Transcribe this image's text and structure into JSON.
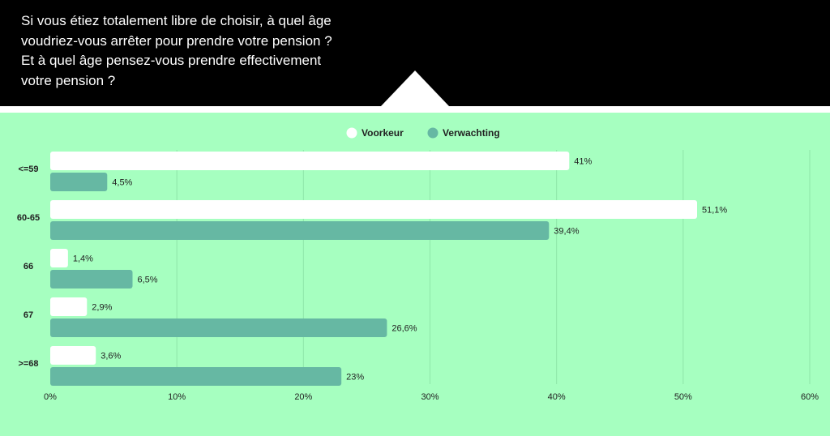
{
  "header": {
    "question_lines": [
      "Si vous étiez totalement libre de choisir, à quel âge",
      "voudriez-vous arrêter pour prendre votre pension ?",
      "Et à quel âge pensez-vous prendre effectivement",
      "votre pension ?"
    ]
  },
  "colors": {
    "header_bg": "#000000",
    "chart_bg": "#a6ffc0",
    "voorkeur": "#ffffff",
    "verwachting": "#66b8a3"
  },
  "chart_data": {
    "type": "bar",
    "orientation": "horizontal",
    "categories": [
      "<=59",
      "60-65",
      "66",
      "67",
      ">=68"
    ],
    "series": [
      {
        "name": "Voorkeur",
        "color": "#ffffff",
        "values": [
          41,
          51.1,
          1.4,
          2.9,
          3.6
        ],
        "labels": [
          "41%",
          "51,1%",
          "1,4%",
          "2,9%",
          "3,6%"
        ]
      },
      {
        "name": "Verwachting",
        "color": "#66b8a3",
        "values": [
          4.5,
          39.4,
          6.5,
          26.6,
          23
        ],
        "labels": [
          "4,5%",
          "39,4%",
          "6,5%",
          "26,6%",
          "23%"
        ]
      }
    ],
    "xlim": [
      0,
      60
    ],
    "xticks": [
      0,
      10,
      20,
      30,
      40,
      50,
      60
    ],
    "xtick_labels": [
      "0%",
      "10%",
      "20%",
      "30%",
      "40%",
      "50%",
      "60%"
    ],
    "legend_position": "top-center",
    "grid": "vertical"
  }
}
